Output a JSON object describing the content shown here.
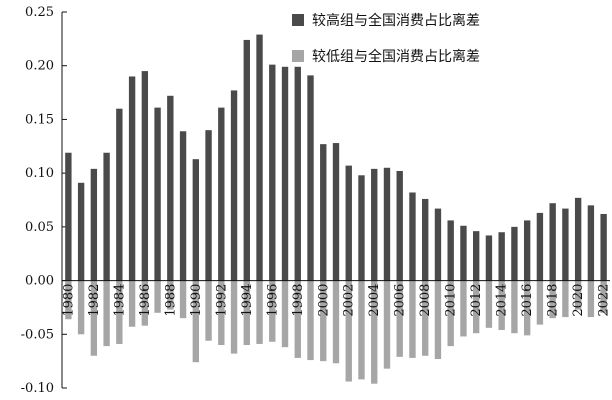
{
  "chart_data": {
    "type": "bar",
    "title": "",
    "xlabel": "",
    "ylabel": "",
    "ylim": [
      -0.1,
      0.25
    ],
    "yticks": [
      "0.25",
      "0.20",
      "0.15",
      "0.10",
      "0.05",
      "0.00",
      "-0.05",
      "-0.10"
    ],
    "grid": false,
    "legend_position": "top-right",
    "categories": [
      "1980",
      "1981",
      "1982",
      "1983",
      "1984",
      "1985",
      "1986",
      "1987",
      "1988",
      "1989",
      "1990",
      "1991",
      "1992",
      "1993",
      "1994",
      "1995",
      "1996",
      "1997",
      "1998",
      "1999",
      "2000",
      "2001",
      "2002",
      "2003",
      "2004",
      "2005",
      "2006",
      "2007",
      "2008",
      "2009",
      "2010",
      "2011",
      "2012",
      "2013",
      "2014",
      "2015",
      "2016",
      "2017",
      "2018",
      "2019",
      "2020",
      "2021",
      "2022"
    ],
    "xtick_labels": [
      "1980",
      "1982",
      "1984",
      "1986",
      "1988",
      "1990",
      "1992",
      "1994",
      "1996",
      "1998",
      "2000",
      "2002",
      "2004",
      "2006",
      "2008",
      "2010",
      "2012",
      "2014",
      "2016",
      "2018",
      "2020",
      "2022"
    ],
    "series": [
      {
        "name": "较高组与全国消费占比离差",
        "color": "#4a4a4a",
        "values": [
          0.119,
          0.091,
          0.104,
          0.119,
          0.16,
          0.19,
          0.195,
          0.161,
          0.172,
          0.139,
          0.113,
          0.14,
          0.161,
          0.177,
          0.224,
          0.229,
          0.201,
          0.199,
          0.199,
          0.191,
          0.127,
          0.128,
          0.107,
          0.098,
          0.104,
          0.105,
          0.102,
          0.082,
          0.076,
          0.067,
          0.056,
          0.051,
          0.046,
          0.042,
          0.045,
          0.05,
          0.056,
          0.063,
          0.072,
          0.067,
          0.077,
          0.07,
          0.062
        ]
      },
      {
        "name": "较低组与全国消费占比离差",
        "color": "#a6a6a6",
        "values": [
          -0.036,
          -0.05,
          -0.07,
          -0.061,
          -0.059,
          -0.043,
          -0.042,
          -0.03,
          -0.027,
          -0.035,
          -0.076,
          -0.056,
          -0.06,
          -0.068,
          -0.06,
          -0.059,
          -0.057,
          -0.062,
          -0.072,
          -0.074,
          -0.075,
          -0.077,
          -0.094,
          -0.092,
          -0.096,
          -0.082,
          -0.071,
          -0.072,
          -0.07,
          -0.073,
          -0.061,
          -0.052,
          -0.049,
          -0.044,
          -0.046,
          -0.049,
          -0.051,
          -0.041,
          -0.035,
          -0.034,
          -0.027,
          -0.034,
          -0.03
        ]
      }
    ]
  }
}
